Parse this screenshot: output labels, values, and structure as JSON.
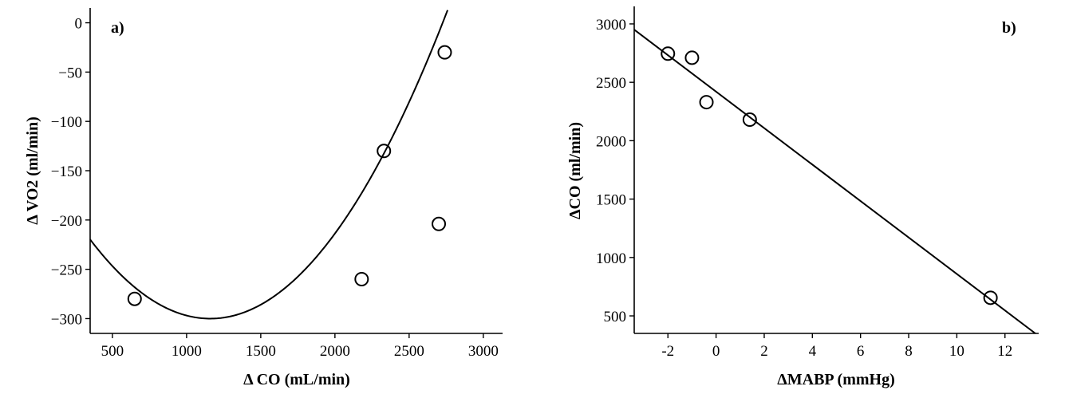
{
  "chart_data": [
    {
      "type": "scatter",
      "panel_label": "a)",
      "xlabel": "Δ CO (mL/min)",
      "ylabel": "Δ VO2 (ml/min)",
      "xlim": [
        350,
        3130
      ],
      "ylim": [
        -315,
        15
      ],
      "x_ticks": [
        500,
        1000,
        1500,
        2000,
        2500,
        3000
      ],
      "y_ticks": [
        0,
        -50,
        -100,
        -150,
        -200,
        -250,
        -300
      ],
      "x_tick_labels": [
        "500",
        "1000",
        "1500",
        "2000",
        "2500",
        "3000"
      ],
      "y_tick_labels": [
        "0",
        "−50",
        "−100",
        "−150",
        "−200",
        "−250",
        "−300"
      ],
      "points": [
        {
          "x": 650,
          "y": -280
        },
        {
          "x": 2180,
          "y": -260
        },
        {
          "x": 2330,
          "y": -130
        },
        {
          "x": 2700,
          "y": -204
        },
        {
          "x": 2740,
          "y": -30
        }
      ],
      "fit": {
        "type": "quadratic",
        "vertex_x": 1160,
        "vertex_y": -300,
        "a": 0.0001223
      }
    },
    {
      "type": "scatter",
      "panel_label": "b)",
      "xlabel": "ΔMABP (mmHg)",
      "ylabel": "ΔCO (ml/min)",
      "xlim": [
        -3.4,
        13.4
      ],
      "ylim": [
        350,
        3150
      ],
      "x_ticks": [
        -2,
        0,
        2,
        4,
        6,
        8,
        10,
        12
      ],
      "y_ticks": [
        500,
        1000,
        1500,
        2000,
        2500,
        3000
      ],
      "x_tick_labels": [
        "-2",
        "0",
        "2",
        "4",
        "6",
        "8",
        "10",
        "12"
      ],
      "y_tick_labels": [
        "500",
        "1000",
        "1500",
        "2000",
        "2500",
        "3000"
      ],
      "points": [
        {
          "x": -2.0,
          "y": 2745
        },
        {
          "x": -1.0,
          "y": 2710
        },
        {
          "x": -0.4,
          "y": 2330
        },
        {
          "x": 1.4,
          "y": 2180
        },
        {
          "x": 11.4,
          "y": 655
        }
      ],
      "fit": {
        "type": "linear",
        "slope": -156.1,
        "intercept": 2420
      }
    }
  ]
}
